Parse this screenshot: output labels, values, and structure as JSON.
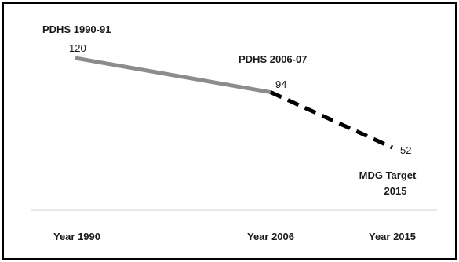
{
  "chart_data": {
    "type": "line",
    "title": "",
    "xlabel": "",
    "ylabel": "",
    "categories": [
      "Year 1990",
      "Year 2006",
      "Year 2015"
    ],
    "x": [
      1990,
      2006,
      2015
    ],
    "series": [
      {
        "values": [
          120,
          94,
          null
        ],
        "style": "solid",
        "color": "#8c8c8c"
      },
      {
        "values": [
          null,
          94,
          52
        ],
        "style": "dashed",
        "color": "#000000"
      }
    ],
    "data_labels": [
      "120",
      "94",
      "52"
    ],
    "point_annotations": [
      "PDHS 1990-91",
      "PDHS 2006-07",
      "MDG Target",
      "2015"
    ],
    "grid": false,
    "legend": "none"
  }
}
